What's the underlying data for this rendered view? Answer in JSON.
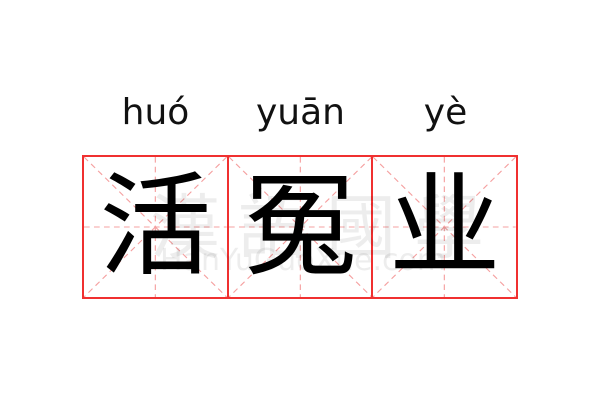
{
  "pinyin": [
    "huó",
    "yuān",
    "yè"
  ],
  "characters": [
    "活",
    "冤",
    "业"
  ],
  "watermark": {
    "chinese": "漢語國學",
    "latin": "HanYuGuoXue.com"
  },
  "colors": {
    "grid_border": "#f03030",
    "guide_lines": "#f5a0a0"
  }
}
